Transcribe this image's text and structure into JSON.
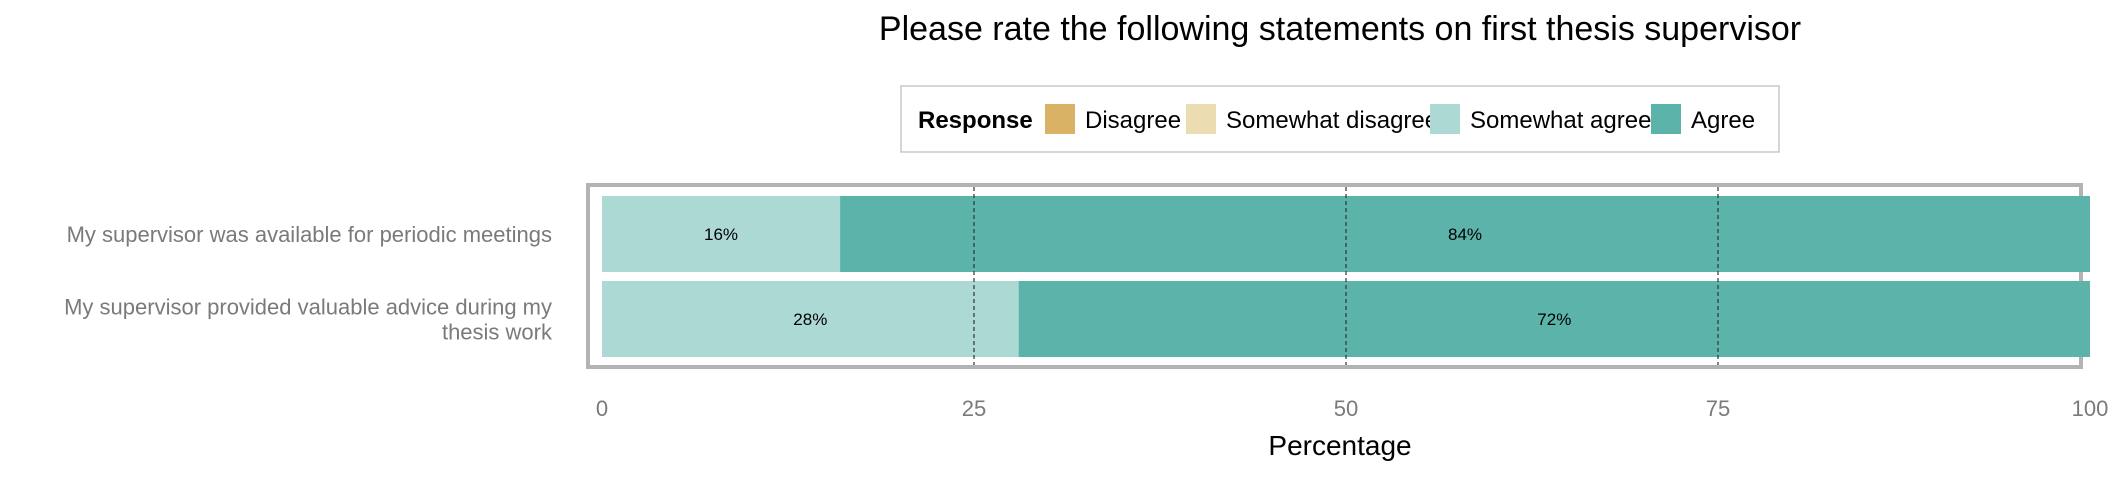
{
  "chart_data": {
    "type": "bar",
    "orientation": "horizontal",
    "stacked": true,
    "title": "Please rate the following statements on first thesis supervisor",
    "xlabel": "Percentage",
    "ylabel": "",
    "xlim": [
      0,
      100
    ],
    "xticks": [
      0,
      25,
      50,
      75,
      100
    ],
    "grid": true,
    "legend": {
      "title": "Response",
      "position": "top",
      "items": [
        {
          "label": "Disagree",
          "color": "#d9b266"
        },
        {
          "label": "Somewhat disagree",
          "color": "#ecdcb2"
        },
        {
          "label": "Somewhat agree",
          "color": "#acd9d4"
        },
        {
          "label": "Agree",
          "color": "#5bb3aa"
        }
      ]
    },
    "categories": [
      "My supervisor was available for periodic meetings",
      "My supervisor provided valuable advice during my thesis work"
    ],
    "category_label_lines": [
      [
        "My supervisor was available for periodic meetings"
      ],
      [
        "My supervisor provided valuable advice during my",
        "thesis work"
      ]
    ],
    "series": [
      {
        "name": "Disagree",
        "color": "#d9b266",
        "values": [
          0,
          0
        ]
      },
      {
        "name": "Somewhat disagree",
        "color": "#ecdcb2",
        "values": [
          0,
          0
        ]
      },
      {
        "name": "Somewhat agree",
        "color": "#acd9d4",
        "values": [
          16,
          28
        ],
        "labels": [
          "16%",
          "28%"
        ]
      },
      {
        "name": "Agree",
        "color": "#5bb3aa",
        "values": [
          84,
          72
        ],
        "labels": [
          "84%",
          "72%"
        ]
      }
    ]
  }
}
